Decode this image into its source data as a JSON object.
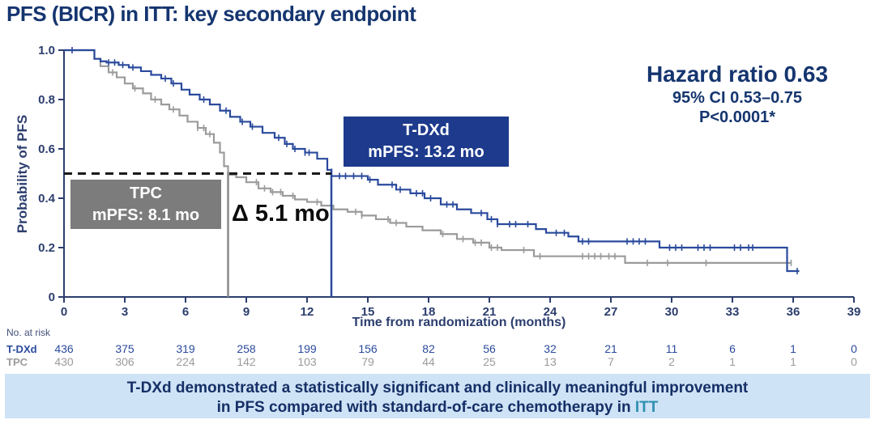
{
  "title": "PFS (BICR) in ITT: key secondary endpoint",
  "stats": {
    "hazard_ratio": "Hazard ratio 0.63",
    "ci": "95% CI 0.53–0.75",
    "p_value": "P<0.0001*"
  },
  "annotations": {
    "tdxd_box": {
      "line1": "T-DXd",
      "line2": "mPFS: 13.2 mo"
    },
    "tpc_box": {
      "line1": "TPC",
      "line2": "mPFS: 8.1 mo"
    },
    "delta": "Δ 5.1 mo"
  },
  "chart_data": {
    "type": "line",
    "subtype": "kaplan-meier",
    "xlabel": "Time from randomization (months)",
    "ylabel": "Probability of PFS",
    "xlim": [
      0,
      39
    ],
    "ylim": [
      0,
      1.0
    ],
    "x_ticks": [
      0,
      3,
      6,
      9,
      12,
      15,
      18,
      21,
      24,
      27,
      30,
      33,
      36,
      39
    ],
    "y_tick_values": [
      1.0,
      0.8,
      0.6,
      0.4,
      0.2,
      0
    ],
    "y_tick_labels": [
      "1.0",
      "0.8",
      "0.6",
      "0.4",
      "0.2",
      "0"
    ],
    "median_reference_line": {
      "y": 0.5,
      "style": "dashed",
      "color": "#1a1a1a"
    },
    "grid": false,
    "series": [
      {
        "name": "T-DXd",
        "color": "#2a4a9d",
        "median_months": 13.2,
        "points": [
          [
            0,
            1.0
          ],
          [
            1.4,
            1.0
          ],
          [
            1.5,
            0.965
          ],
          [
            1.8,
            0.955
          ],
          [
            2.1,
            0.95
          ],
          [
            2.7,
            0.94
          ],
          [
            3.2,
            0.93
          ],
          [
            3.8,
            0.915
          ],
          [
            4.3,
            0.9
          ],
          [
            4.8,
            0.885
          ],
          [
            5.3,
            0.865
          ],
          [
            5.8,
            0.84
          ],
          [
            6.2,
            0.82
          ],
          [
            6.7,
            0.8
          ],
          [
            7.2,
            0.78
          ],
          [
            7.7,
            0.755
          ],
          [
            8.2,
            0.73
          ],
          [
            8.7,
            0.71
          ],
          [
            9.2,
            0.69
          ],
          [
            9.8,
            0.665
          ],
          [
            10.4,
            0.645
          ],
          [
            10.9,
            0.62
          ],
          [
            11.3,
            0.6
          ],
          [
            11.9,
            0.585
          ],
          [
            12.5,
            0.56
          ],
          [
            13.0,
            0.515
          ],
          [
            13.2,
            0.49
          ],
          [
            15.0,
            0.475
          ],
          [
            15.5,
            0.455
          ],
          [
            16.4,
            0.435
          ],
          [
            17.1,
            0.42
          ],
          [
            17.8,
            0.4
          ],
          [
            18.6,
            0.375
          ],
          [
            19.4,
            0.355
          ],
          [
            20.1,
            0.34
          ],
          [
            20.9,
            0.315
          ],
          [
            21.4,
            0.295
          ],
          [
            23.3,
            0.275
          ],
          [
            23.8,
            0.26
          ],
          [
            24.9,
            0.245
          ],
          [
            25.4,
            0.225
          ],
          [
            29.4,
            0.2
          ],
          [
            35.7,
            0.105
          ],
          [
            36.3,
            0.105
          ]
        ],
        "censor_months": [
          0.4,
          2.2,
          2.5,
          2.9,
          3.4,
          5.0,
          5.4,
          6.9,
          8.0,
          8.8,
          9.3,
          10.6,
          11.0,
          11.4,
          11.9,
          12.1,
          13.6,
          13.9,
          14.3,
          14.7,
          15.1,
          16.2,
          16.6,
          17.4,
          17.7,
          18.1,
          18.9,
          19.2,
          20.6,
          21.1,
          21.4,
          22.0,
          22.3,
          22.9,
          24.3,
          24.7,
          25.6,
          25.9,
          27.8,
          28.1,
          28.4,
          28.7,
          29.9,
          30.2,
          30.5,
          31.3,
          31.6,
          31.9,
          33.1,
          33.4,
          33.8,
          34.0,
          36.2
        ]
      },
      {
        "name": "TPC",
        "color": "#9b9b9b",
        "median_months": 8.1,
        "points": [
          [
            0,
            1.0
          ],
          [
            1.3,
            1.0
          ],
          [
            1.5,
            0.965
          ],
          [
            1.8,
            0.935
          ],
          [
            2.2,
            0.91
          ],
          [
            2.6,
            0.89
          ],
          [
            3.0,
            0.865
          ],
          [
            3.4,
            0.845
          ],
          [
            3.9,
            0.825
          ],
          [
            4.3,
            0.8
          ],
          [
            4.8,
            0.78
          ],
          [
            5.2,
            0.76
          ],
          [
            5.7,
            0.735
          ],
          [
            6.1,
            0.71
          ],
          [
            6.6,
            0.685
          ],
          [
            7.0,
            0.66
          ],
          [
            7.4,
            0.625
          ],
          [
            7.7,
            0.585
          ],
          [
            7.9,
            0.53
          ],
          [
            8.1,
            0.495
          ],
          [
            8.5,
            0.485
          ],
          [
            9.0,
            0.465
          ],
          [
            9.6,
            0.44
          ],
          [
            10.2,
            0.425
          ],
          [
            10.8,
            0.41
          ],
          [
            11.4,
            0.395
          ],
          [
            12.0,
            0.385
          ],
          [
            12.7,
            0.37
          ],
          [
            13.3,
            0.355
          ],
          [
            14.0,
            0.345
          ],
          [
            14.7,
            0.33
          ],
          [
            15.4,
            0.315
          ],
          [
            16.1,
            0.3
          ],
          [
            16.9,
            0.285
          ],
          [
            17.7,
            0.27
          ],
          [
            18.6,
            0.255
          ],
          [
            19.4,
            0.235
          ],
          [
            20.2,
            0.22
          ],
          [
            21.0,
            0.2
          ],
          [
            21.6,
            0.19
          ],
          [
            23.2,
            0.165
          ],
          [
            27.7,
            0.138
          ],
          [
            35.9,
            0.138
          ]
        ],
        "censor_months": [
          2.4,
          3.5,
          4.5,
          5.4,
          6.6,
          6.9,
          7.2,
          9.5,
          9.9,
          10.3,
          10.7,
          11.3,
          12.5,
          13.2,
          14.4,
          14.7,
          16.0,
          16.4,
          18.7,
          19.7,
          20.3,
          20.6,
          21.1,
          21.4,
          22.7,
          23.5,
          25.6,
          25.9,
          26.2,
          26.5,
          26.9,
          27.2,
          28.8,
          29.8,
          31.7,
          35.9
        ]
      }
    ]
  },
  "risk_table": {
    "caption": "No. at risk",
    "months": [
      0,
      3,
      6,
      9,
      12,
      15,
      18,
      21,
      24,
      27,
      30,
      33,
      36,
      39
    ],
    "rows": [
      {
        "name": "T-DXd",
        "color": "#2a4a9d",
        "values": [
          436,
          375,
          319,
          258,
          199,
          156,
          82,
          56,
          32,
          21,
          11,
          6,
          1,
          0
        ]
      },
      {
        "name": "TPC",
        "color": "#9b9b9b",
        "values": [
          430,
          306,
          224,
          142,
          103,
          79,
          44,
          25,
          13,
          7,
          2,
          1,
          1,
          0
        ]
      }
    ]
  },
  "banner": {
    "line1": "T-DXd demonstrated a statistically significant and clinically meaningful improvement",
    "line2_prefix": "in PFS compared with standard-of-care chemotherapy in ",
    "line2_highlight": "ITT",
    "highlight_color": "#2e8fb0",
    "background": "#cfe3f6"
  },
  "colors": {
    "title": "#15356f",
    "axis": "#2c3e6e",
    "tdxd_curve": "#2a4a9d",
    "tpc_curve": "#9b9b9b",
    "tdxd_box_bg": "#1d3a8c",
    "tpc_box_bg": "#7c7c7c",
    "banner_bg": "#cfe3f6",
    "banner_text": "#152f66"
  }
}
